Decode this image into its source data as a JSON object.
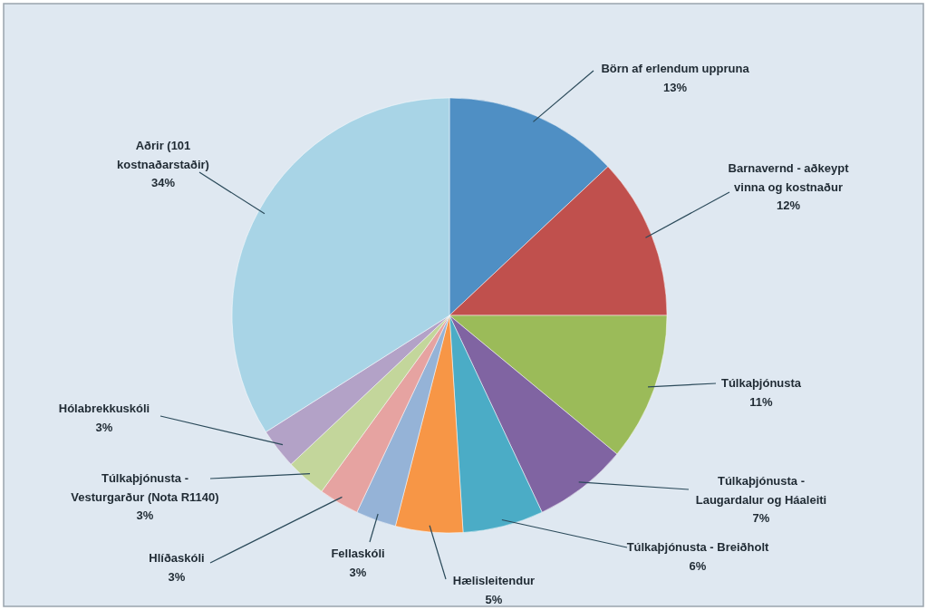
{
  "chart_data": {
    "type": "pie",
    "categories": [
      "Börn af erlendum uppruna",
      "Barnavernd - aðkeypt vinna og kostnaður",
      "Túlkaþjónusta",
      "Túlkaþjónusta - Laugardalur og Háaleiti",
      "Túlkaþjónusta - Breiðholt",
      "Hælisleitendur",
      "Fellaskóli",
      "Hlíðaskóli",
      "Túlkaþjónusta - Vesturgarður (Nota R1140)",
      "Hólabrekkuskóli",
      "Aðrir (101 kostnaðarstaðir)"
    ],
    "values": [
      13,
      12,
      11,
      7,
      6,
      5,
      3,
      3,
      3,
      3,
      34
    ],
    "value_labels": [
      "13%",
      "12%",
      "11%",
      "7%",
      "6%",
      "5%",
      "3%",
      "3%",
      "3%",
      "3%",
      "34%"
    ],
    "colors": [
      "#4f8fc4",
      "#c0504d",
      "#9bbb59",
      "#8064a2",
      "#4bacc6",
      "#f79646",
      "#95b3d7",
      "#e6a3a1",
      "#c3d69b",
      "#b3a2c7",
      "#a8d4e6"
    ],
    "legend": false
  }
}
